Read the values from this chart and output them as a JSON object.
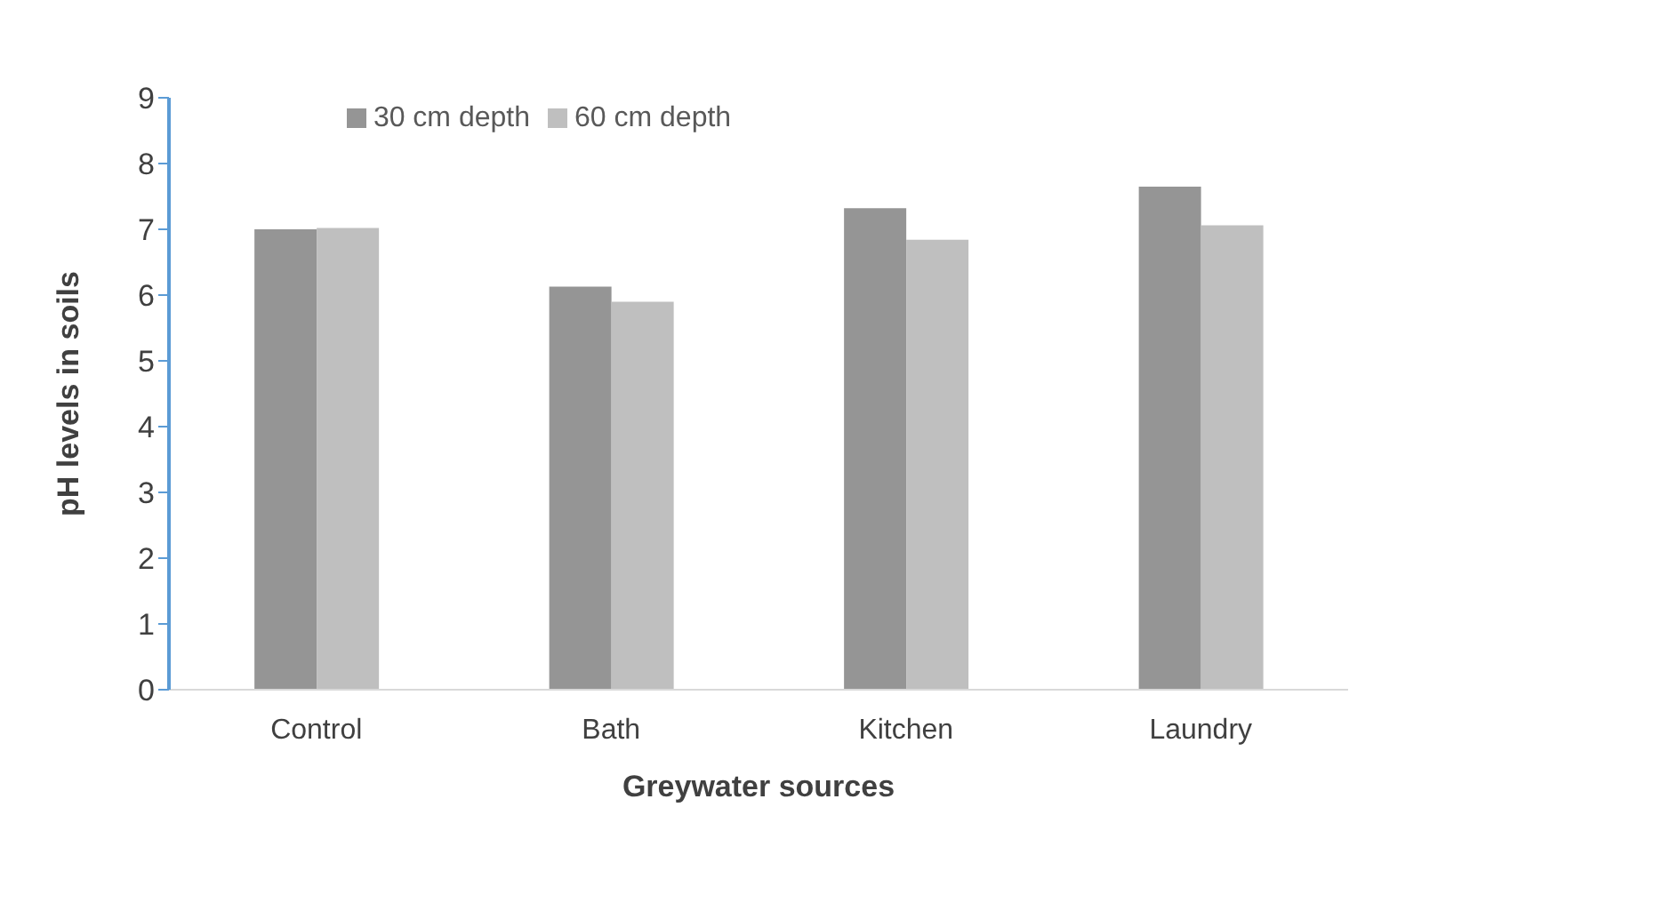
{
  "chart_data": {
    "type": "bar",
    "xlabel": "Greywater sources",
    "ylabel": "pH levels in soils",
    "categories": [
      "Control",
      "Bath",
      "Kitchen",
      "Laundry"
    ],
    "series": [
      {
        "name": "30 cm depth",
        "color": "#959595",
        "values": [
          7.0,
          6.13,
          7.32,
          7.65
        ]
      },
      {
        "name": "60 cm depth",
        "color": "#bfbfbf",
        "values": [
          7.02,
          5.9,
          6.84,
          7.06
        ]
      }
    ],
    "ylim": [
      0,
      9
    ],
    "yticks": [
      0,
      1,
      2,
      3,
      4,
      5,
      6,
      7,
      8,
      9
    ],
    "grid": false,
    "legend": "top"
  }
}
